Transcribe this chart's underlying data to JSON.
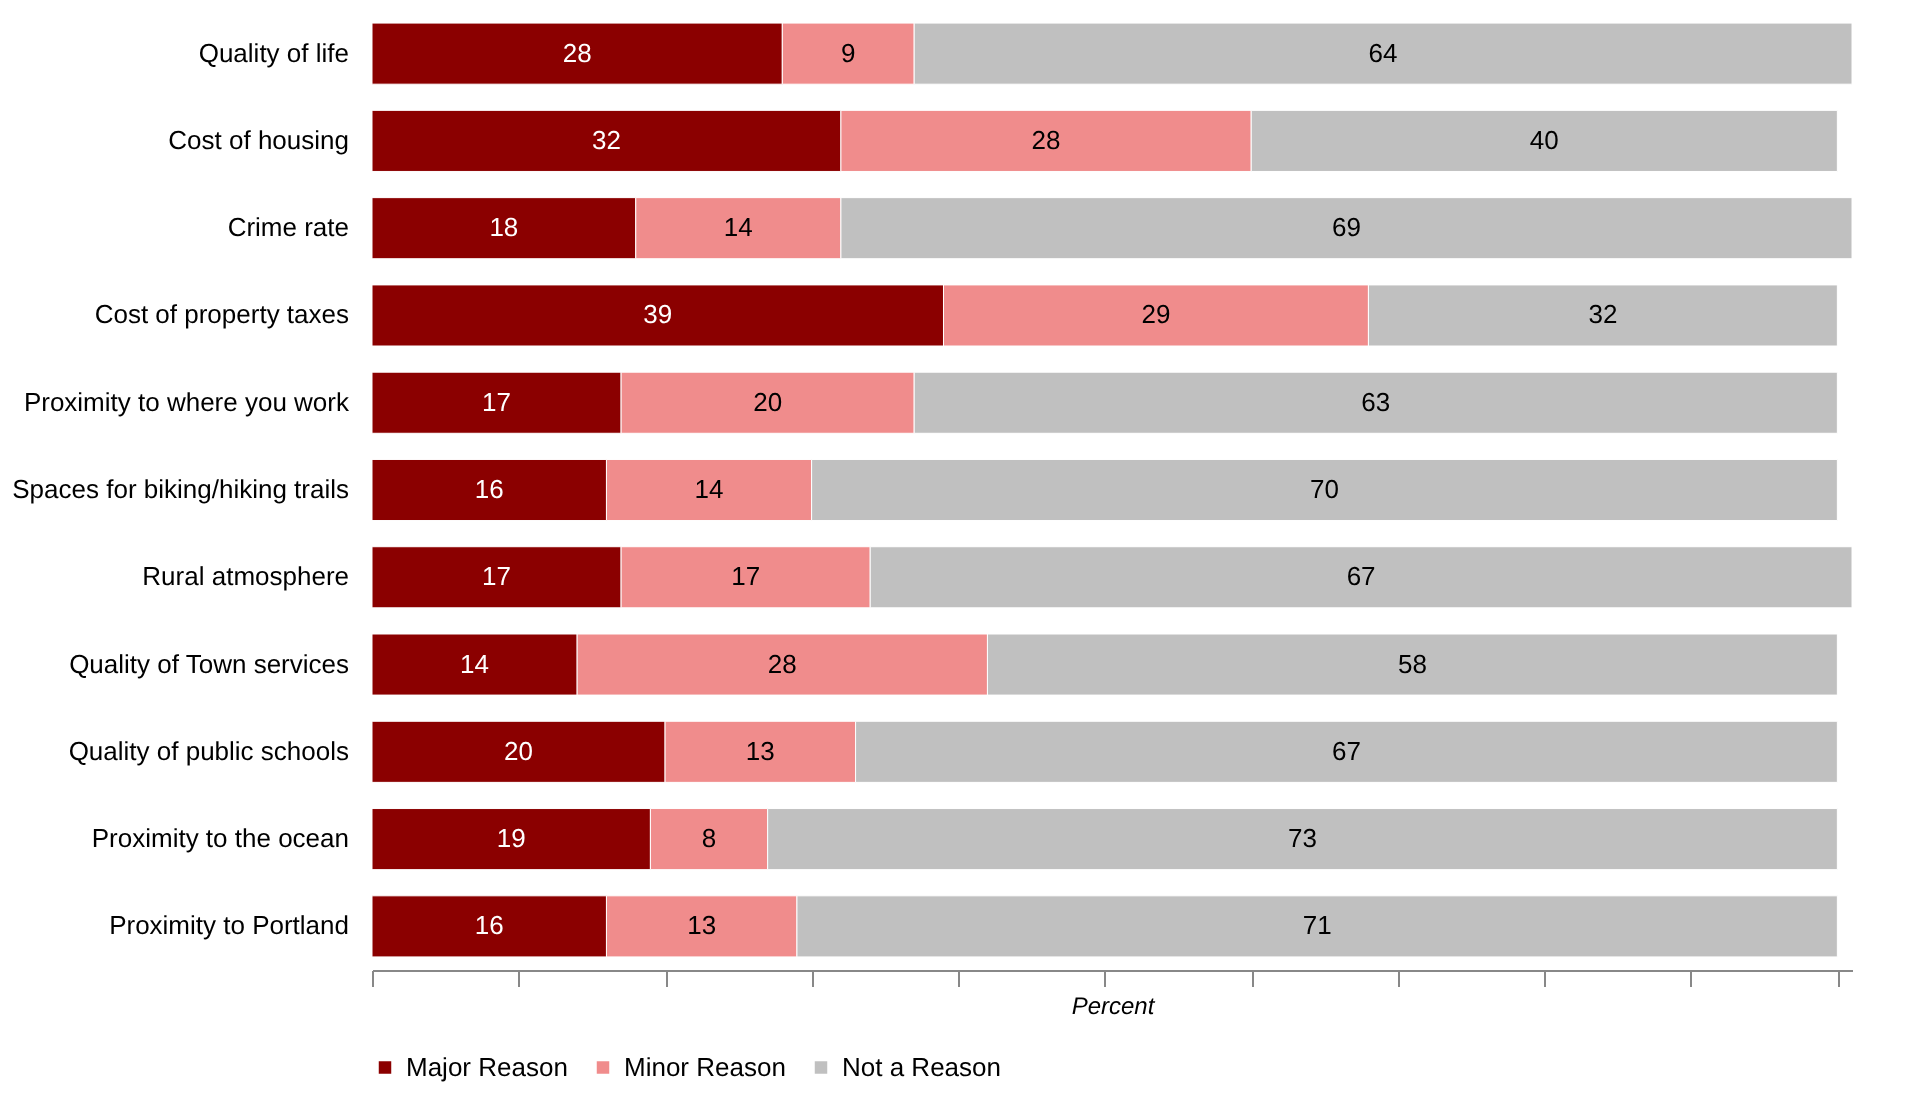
{
  "chart_data": {
    "type": "bar",
    "orientation": "horizontal",
    "stacked": true,
    "data_labels": true,
    "xlabel": "Percent",
    "legend": "bottom",
    "grid": false,
    "tick_labels": "y",
    "categories": [
      "Quality of life",
      "Cost of housing",
      "Crime rate",
      "Cost of property taxes",
      "Proximity to where you work",
      "Spaces for biking/hiking trails",
      "Rural atmosphere",
      "Quality of Town services",
      "Quality of public schools",
      "Proximity to the ocean",
      "Proximity to Portland"
    ],
    "series": [
      {
        "name": "Major Reason",
        "color": "#8b0000",
        "values": [
          28,
          32,
          18,
          39,
          17,
          16,
          17,
          14,
          20,
          19,
          16
        ]
      },
      {
        "name": "Minor Reason",
        "color": "#f08c8c",
        "values": [
          9,
          28,
          14,
          29,
          20,
          14,
          17,
          28,
          13,
          8,
          13
        ]
      },
      {
        "name": "Not a Reason",
        "color": "#c0c0c0",
        "values": [
          64,
          40,
          69,
          32,
          63,
          70,
          67,
          58,
          67,
          73,
          71
        ]
      }
    ],
    "xlim": [
      0,
      101
    ],
    "xticks": [
      {
        "value": 0,
        "label": null
      },
      {
        "value": 10,
        "label": null
      },
      {
        "value": 20,
        "label": null
      },
      {
        "value": 30,
        "label": null
      },
      {
        "value": 40,
        "label": null
      },
      {
        "value": 50,
        "label": null
      },
      {
        "value": 60,
        "label": null
      },
      {
        "value": 70,
        "label": null
      },
      {
        "value": 80,
        "label": null
      },
      {
        "value": 90,
        "label": null
      },
      {
        "value": 100,
        "label": null
      }
    ]
  }
}
